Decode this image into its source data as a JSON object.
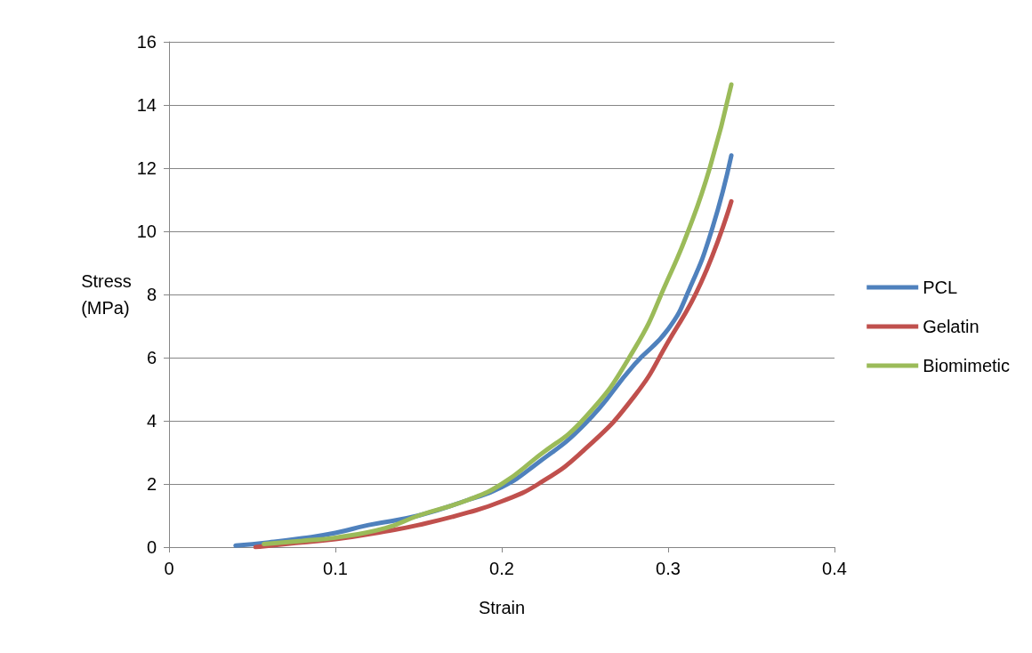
{
  "chart_data": {
    "type": "line",
    "xlabel": "Strain",
    "ylabel": "Stress\n(MPa)",
    "xlim": [
      0,
      0.4
    ],
    "xticks": [
      0,
      0.1,
      0.2,
      0.3,
      0.4
    ],
    "ylim": [
      0,
      16
    ],
    "yticks": [
      0,
      2,
      4,
      6,
      8,
      10,
      12,
      14,
      16
    ],
    "grid": "y",
    "legend": "right",
    "marker": "none",
    "line_style": "solid",
    "series": [
      {
        "name": "PCL",
        "color": "#4f81bd",
        "x": [
          0.04,
          0.06,
          0.08,
          0.1,
          0.12,
          0.15,
          0.18,
          0.2,
          0.22,
          0.25,
          0.28,
          0.3,
          0.313,
          0.326,
          0.338
        ],
        "values": [
          0.05,
          0.15,
          0.28,
          0.45,
          0.7,
          1.0,
          1.5,
          1.9,
          2.6,
          3.9,
          5.8,
          6.9,
          8.2,
          10.0,
          12.4
        ]
      },
      {
        "name": "Gelatin",
        "color": "#c0504d",
        "x": [
          0.052,
          0.07,
          0.1,
          0.13,
          0.15,
          0.18,
          0.2,
          0.222,
          0.25,
          0.28,
          0.3,
          0.32,
          0.338
        ],
        "values": [
          0.0,
          0.1,
          0.25,
          0.5,
          0.7,
          1.1,
          1.45,
          2.0,
          3.1,
          4.8,
          6.5,
          8.4,
          10.95
        ]
      },
      {
        "name": "Biomimetic",
        "color": "#9bbb59",
        "x": [
          0.057,
          0.08,
          0.1,
          0.13,
          0.15,
          0.18,
          0.2,
          0.22,
          0.25,
          0.28,
          0.3,
          0.312,
          0.325,
          0.338
        ],
        "values": [
          0.1,
          0.2,
          0.3,
          0.6,
          1.0,
          1.5,
          2.0,
          2.8,
          4.1,
          6.3,
          8.5,
          10.0,
          12.0,
          14.65
        ]
      }
    ]
  }
}
